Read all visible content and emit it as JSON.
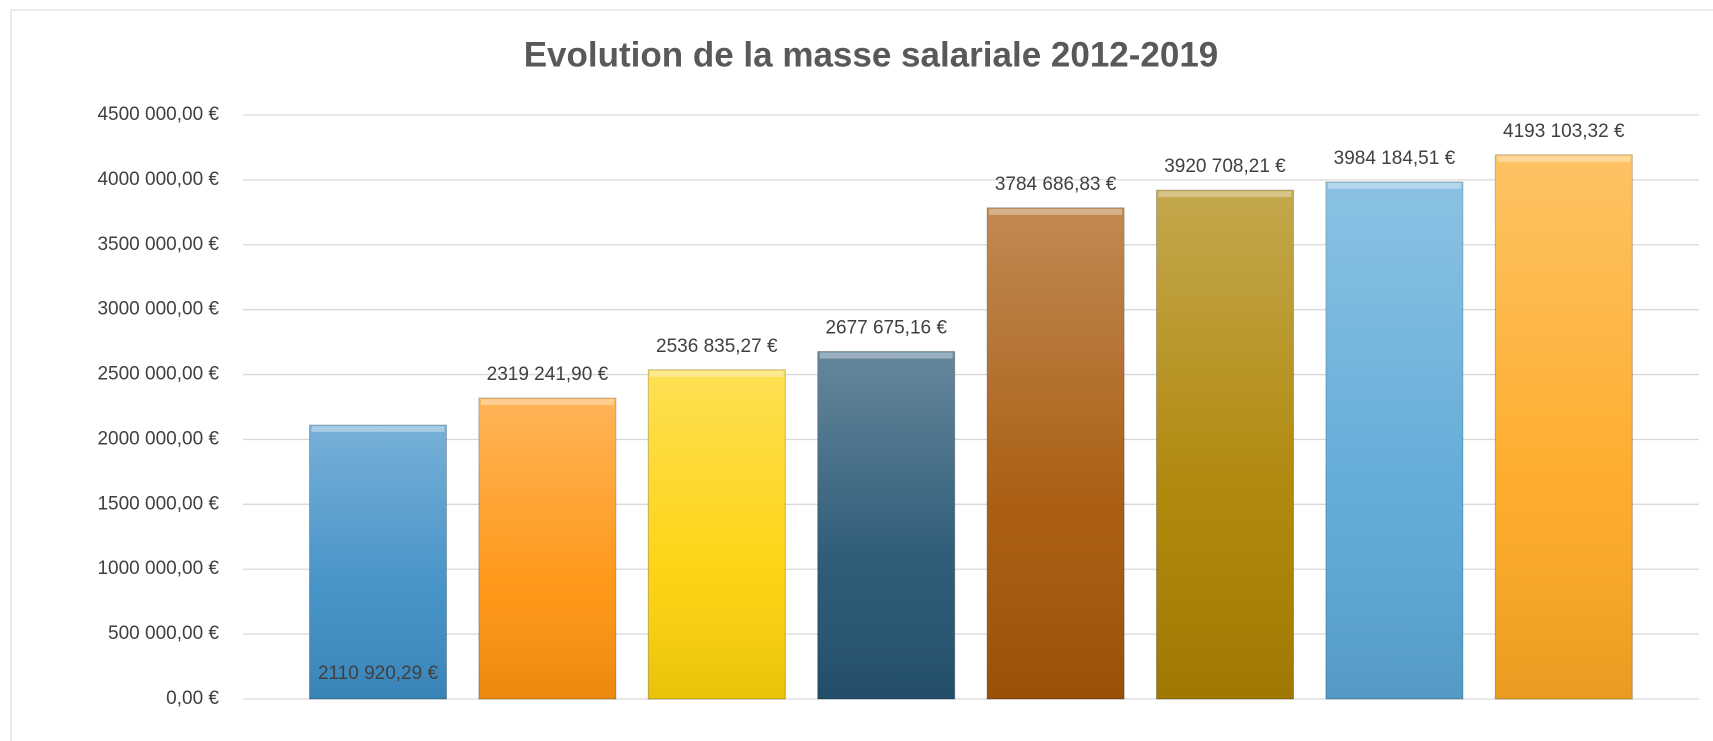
{
  "chart_data": {
    "type": "bar",
    "title": "Evolution de la masse salariale 2012-2019",
    "categories": [
      null,
      null,
      null,
      null,
      null,
      null,
      null,
      null
    ],
    "values": [
      2110920.29,
      2319241.9,
      2536835.27,
      2677675.16,
      3784686.83,
      3920708.21,
      3984184.51,
      4193103.32
    ],
    "value_labels": [
      "2110 920,29 €",
      "2319 241,90 €",
      "2536 835,27 €",
      "2677 675,16 €",
      "3784 686,83 €",
      "3920 708,21 €",
      "3984 184,51 €",
      "4193 103,32 €"
    ],
    "colors": [
      "#3d8ec6",
      "#ff9410",
      "#fdd20a",
      "#245472",
      "#a65708",
      "#ab8200",
      "#5aa8d6",
      "#fda922"
    ],
    "ylim": [
      0,
      4500000
    ],
    "yticks": [
      {
        "value": 0,
        "label": "0,00 €"
      },
      {
        "value": 500000,
        "label": "500 000,00 €"
      },
      {
        "value": 1000000,
        "label": "1000 000,00 €"
      },
      {
        "value": 1500000,
        "label": "1500 000,00 €"
      },
      {
        "value": 2000000,
        "label": "2000 000,00 €"
      },
      {
        "value": 2500000,
        "label": "2500 000,00 €"
      },
      {
        "value": 3000000,
        "label": "3000 000,00 €"
      },
      {
        "value": 3500000,
        "label": "3500 000,00 €"
      },
      {
        "value": 4000000,
        "label": "4000 000,00 €"
      },
      {
        "value": 4500000,
        "label": "4500 000,00 €"
      }
    ],
    "grid": true
  }
}
